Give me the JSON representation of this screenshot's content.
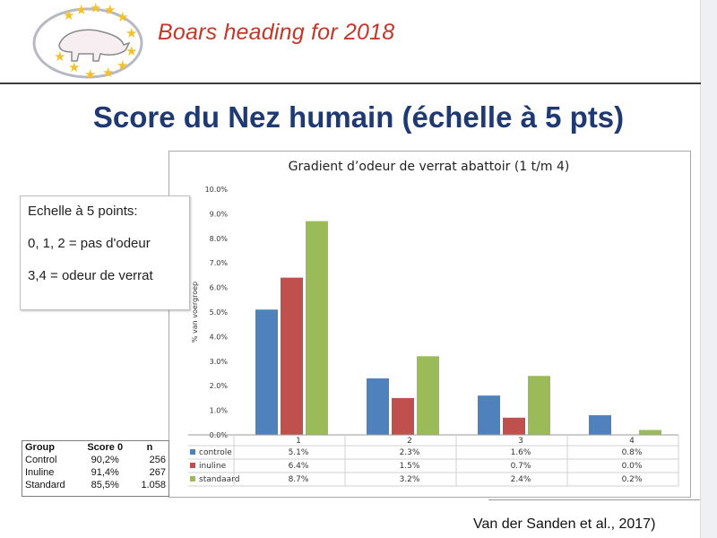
{
  "header": {
    "brand": "Boars heading for 2018",
    "title": "Score du Nez humain (échelle à 5 pts)"
  },
  "notes": [
    "Echelle à 5 points:",
    "0, 1, 2 = pas d'odeur",
    "3,4 = odeur de verrat"
  ],
  "mini_table": {
    "headers": [
      "Group",
      "Score 0",
      "n"
    ],
    "rows": [
      [
        "Control",
        "90,2%",
        "256"
      ],
      [
        "Inuline",
        "91,4%",
        "267"
      ],
      [
        "Standard",
        "85,5%",
        "1.058"
      ]
    ]
  },
  "source": "Van der Sanden et al., 2017)",
  "chart_data": {
    "type": "bar",
    "title": "Gradient d’odeur de verrat abattoir (1 t/m 4)",
    "ylabel": "% van voergroep",
    "xlabel": "",
    "categories": [
      "1",
      "2",
      "3",
      "4"
    ],
    "ylim": [
      0,
      10
    ],
    "yticks": [
      "0.0%",
      "1.0%",
      "2.0%",
      "3.0%",
      "4.0%",
      "5.0%",
      "6.0%",
      "7.0%",
      "8.0%",
      "9.0%",
      "10.0%"
    ],
    "series": [
      {
        "name": "controle",
        "color": "#4f81bd",
        "values": [
          5.1,
          2.3,
          1.6,
          0.8
        ],
        "labels": [
          "5.1%",
          "2.3%",
          "1.6%",
          "0.8%"
        ]
      },
      {
        "name": "inuline",
        "color": "#c0504d",
        "values": [
          6.4,
          1.5,
          0.7,
          0.0
        ],
        "labels": [
          "6.4%",
          "1.5%",
          "0.7%",
          "0.0%"
        ]
      },
      {
        "name": "standaard",
        "color": "#9bbb59",
        "values": [
          8.7,
          3.2,
          2.4,
          0.2
        ],
        "labels": [
          "8.7%",
          "3.2%",
          "2.4%",
          "0.2%"
        ]
      }
    ],
    "legend": "data-table-below",
    "grid": false
  },
  "colors": {
    "title": "#1f3a73",
    "brand": "#c0392b",
    "logo_ring": "#b6b9c4",
    "star": "#f2c12e"
  }
}
